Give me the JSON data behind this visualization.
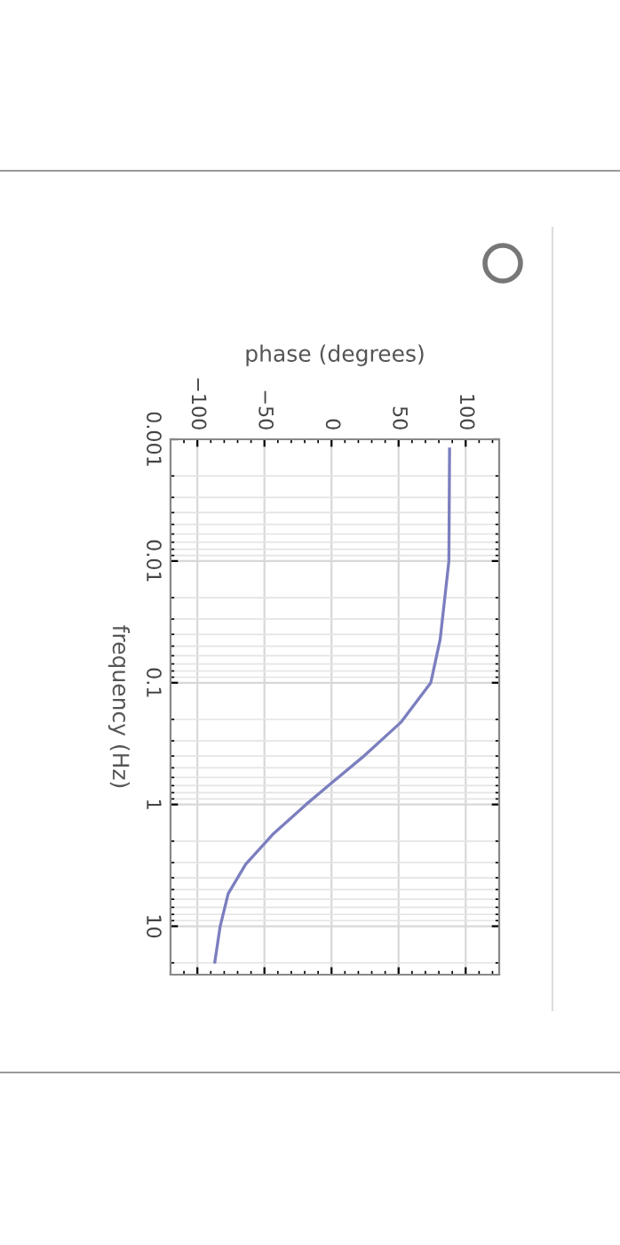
{
  "chart_data": {
    "type": "line",
    "xlabel": "phase (degrees)",
    "ylabel": "frequency (Hz)",
    "x": [
      88,
      87.5,
      81,
      74,
      52,
      23,
      -1,
      -19,
      -44,
      -64,
      -77,
      -83,
      -87
    ],
    "series": [
      {
        "color": "#7b7fbf",
        "values": [
          0.0012,
          0.01,
          0.044,
          0.1,
          0.21,
          0.41,
          0.68,
          1,
          1.77,
          3.1,
          5.4,
          10,
          19.7
        ]
      }
    ],
    "log": "y",
    "xlim": [
      -120,
      125
    ],
    "ylim": [
      25,
      0.001
    ],
    "xticks": [
      {
        "value": -100,
        "label": "−100"
      },
      {
        "value": -50,
        "label": "−50"
      },
      0,
      50,
      100
    ],
    "yticks": [
      0.001,
      0.01,
      0.1,
      1,
      10
    ],
    "grid": true,
    "marker": "none",
    "line_style": "solid"
  }
}
